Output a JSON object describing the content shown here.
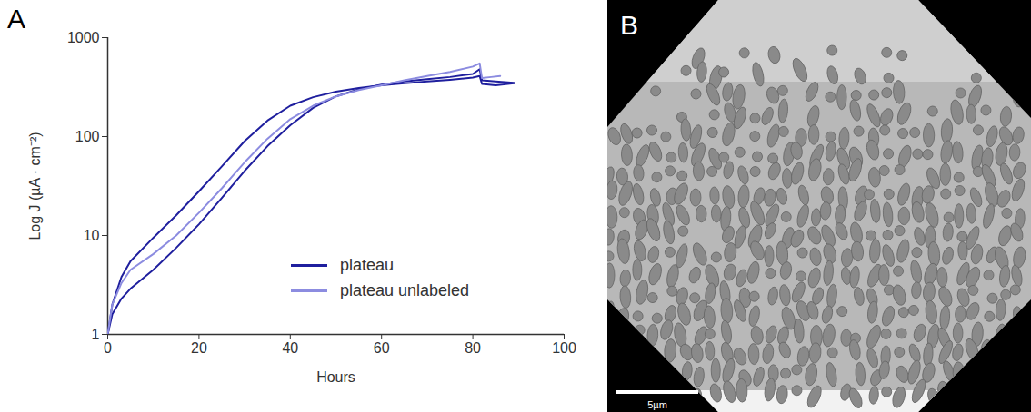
{
  "chart_data": {
    "type": "line",
    "panel_label": "A",
    "x_label": "Hours",
    "y_label": "Log J (µA · cm⁻²)",
    "log": "y",
    "xlim": [
      0,
      100
    ],
    "xticks": [
      0,
      20,
      40,
      60,
      80,
      100
    ],
    "ylim": [
      1,
      1000
    ],
    "yticks": [
      1,
      10,
      100,
      1000
    ],
    "legend": "lower right",
    "series": [
      {
        "name": "plateau",
        "color": "#1f1f9e",
        "x": [
          0,
          1,
          3,
          5,
          10,
          15,
          20,
          25,
          30,
          35,
          40,
          45,
          50,
          55,
          60,
          65,
          70,
          75,
          80,
          81.5,
          82,
          85,
          89
        ],
        "values": [
          1,
          2,
          3.8,
          5.5,
          9.5,
          16,
          28,
          50,
          90,
          145,
          205,
          250,
          285,
          310,
          330,
          345,
          360,
          375,
          395,
          410,
          340,
          330,
          345
        ]
      },
      {
        "name": "plateau",
        "color": "#1f1f9e",
        "x": [
          0,
          1,
          3,
          5,
          10,
          15,
          20,
          25,
          30,
          35,
          40,
          45,
          50,
          55,
          60,
          65,
          70,
          75,
          80,
          81.5,
          82,
          85,
          89
        ],
        "values": [
          1,
          1.6,
          2.3,
          2.9,
          4.5,
          7.5,
          13,
          24,
          45,
          80,
          130,
          195,
          255,
          300,
          335,
          360,
          380,
          400,
          430,
          480,
          370,
          360,
          350
        ]
      },
      {
        "name": "plateau unlabeled",
        "color": "#8c8ce0",
        "x": [
          0,
          1,
          3,
          5,
          10,
          15,
          20,
          25,
          30,
          35,
          40,
          45,
          50,
          55,
          60,
          65,
          70,
          75,
          80,
          81.5,
          82,
          84,
          86
        ],
        "values": [
          1,
          2,
          3.3,
          4.5,
          6.5,
          10,
          17,
          30,
          55,
          95,
          150,
          205,
          255,
          295,
          330,
          370,
          410,
          450,
          510,
          550,
          390,
          400,
          410
        ]
      }
    ]
  },
  "image_panel": {
    "panel_label": "B",
    "scale_bar": "5µm"
  }
}
